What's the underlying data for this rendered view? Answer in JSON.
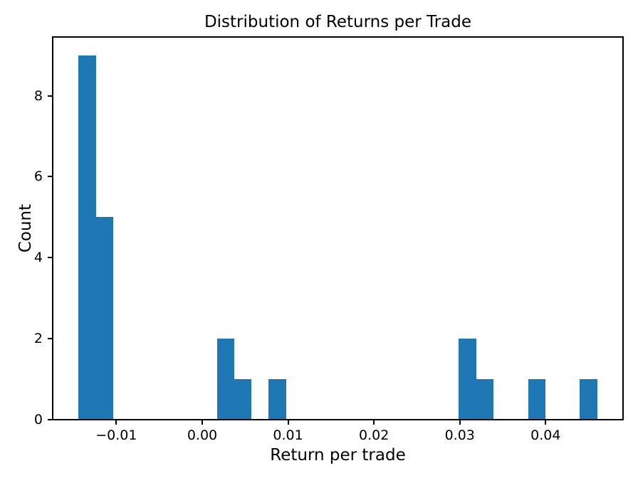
{
  "figure": {
    "background": "#ffffff",
    "text_color": "#000000"
  },
  "chart_data": {
    "type": "bar",
    "subtype": "histogram",
    "title": "Distribution of Returns per Trade",
    "xlabel": "Return per trade",
    "ylabel": "Count",
    "bar_color": "#1f77b4",
    "axis_color": "#000000",
    "grid": false,
    "legend": "none",
    "bins": {
      "start": -0.0144,
      "end": 0.046,
      "count": 30
    },
    "counts": [
      9,
      5,
      0,
      0,
      0,
      0,
      0,
      0,
      2,
      1,
      0,
      1,
      0,
      0,
      0,
      0,
      0,
      0,
      0,
      0,
      0,
      0,
      2,
      1,
      0,
      0,
      1,
      0,
      0,
      1
    ],
    "xlim": [
      -0.017413,
      0.049013
    ],
    "ylim": [
      0,
      9.45
    ],
    "xticks": [
      {
        "value": -0.01,
        "label": "−0.01"
      },
      {
        "value": 0.0,
        "label": "0.00"
      },
      {
        "value": 0.01,
        "label": "0.01"
      },
      {
        "value": 0.02,
        "label": "0.02"
      },
      {
        "value": 0.03,
        "label": "0.03"
      },
      {
        "value": 0.04,
        "label": "0.04"
      }
    ],
    "yticks": [
      {
        "value": 0,
        "label": "0"
      },
      {
        "value": 2,
        "label": "2"
      },
      {
        "value": 4,
        "label": "4"
      },
      {
        "value": 6,
        "label": "6"
      },
      {
        "value": 8,
        "label": "8"
      }
    ]
  }
}
